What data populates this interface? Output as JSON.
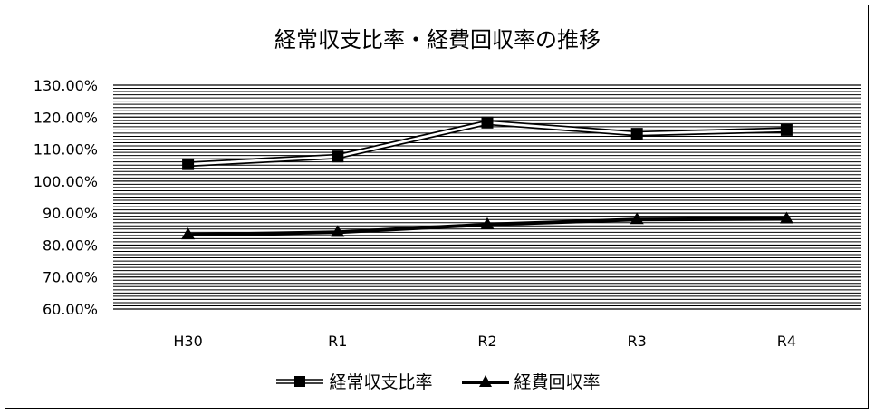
{
  "chart_data": {
    "type": "line",
    "title": "経常収支比率・経費回収率の推移",
    "categories": [
      "H30",
      "R1",
      "R2",
      "R3",
      "R4"
    ],
    "ylim": [
      60,
      130
    ],
    "y_tick_step": 10,
    "y_tick_labels": [
      "60.00%",
      "70.00%",
      "80.00%",
      "90.00%",
      "100.00%",
      "110.00%",
      "120.00%",
      "130.00%"
    ],
    "grid": true,
    "legend_position": "bottom",
    "series": [
      {
        "name": "経常収支比率",
        "marker": "square",
        "style": "double-line",
        "values": [
          105.3,
          107.7,
          118.3,
          114.8,
          116.0
        ]
      },
      {
        "name": "経費回収率",
        "marker": "triangle",
        "style": "thick-line",
        "values": [
          83.2,
          84.0,
          86.4,
          88.0,
          88.2
        ]
      }
    ],
    "xlabel": "",
    "ylabel": ""
  }
}
